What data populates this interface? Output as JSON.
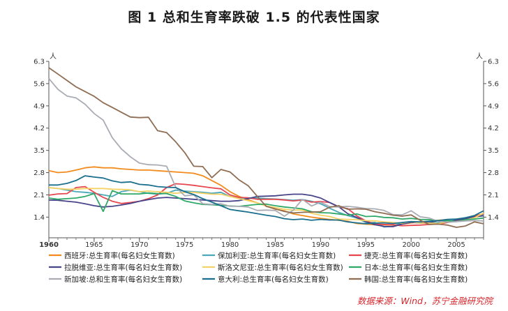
{
  "title": "图 1    总和生育率跌破 1.5 的代表性国家",
  "source": "数据来源：Wind，苏宁金融研究院",
  "chart_data": {
    "type": "line",
    "ylabel_left": "人",
    "ylabel_right": "人",
    "xlim": [
      1960,
      2008
    ],
    "ylim": [
      0.75,
      6.3
    ],
    "yticks": [
      1.4,
      2.1,
      2.8,
      3.5,
      4.2,
      4.9,
      5.6,
      6.3
    ],
    "xticks": [
      1960,
      1965,
      1970,
      1975,
      1980,
      1985,
      1990,
      1995,
      2000,
      2005
    ],
    "x": [
      1960,
      1961,
      1962,
      1963,
      1964,
      1965,
      1966,
      1967,
      1968,
      1969,
      1970,
      1971,
      1972,
      1973,
      1974,
      1975,
      1976,
      1977,
      1978,
      1979,
      1980,
      1981,
      1982,
      1983,
      1984,
      1985,
      1986,
      1987,
      1988,
      1989,
      1990,
      1991,
      1992,
      1993,
      1994,
      1995,
      1996,
      1997,
      1998,
      1999,
      2000,
      2001,
      2002,
      2003,
      2004,
      2005,
      2006,
      2007,
      2008
    ],
    "series": [
      {
        "name": "西班牙:总生育率(每名妇女生育数)",
        "color": "#f28b1c",
        "values": [
          2.86,
          2.8,
          2.82,
          2.88,
          2.95,
          2.98,
          2.95,
          2.95,
          2.92,
          2.9,
          2.88,
          2.88,
          2.86,
          2.84,
          2.82,
          2.8,
          2.78,
          2.7,
          2.55,
          2.4,
          2.2,
          2.05,
          1.95,
          1.85,
          1.75,
          1.65,
          1.6,
          1.5,
          1.45,
          1.4,
          1.36,
          1.33,
          1.3,
          1.27,
          1.2,
          1.18,
          1.16,
          1.16,
          1.15,
          1.18,
          1.22,
          1.24,
          1.26,
          1.3,
          1.32,
          1.34,
          1.37,
          1.39,
          1.46
        ]
      },
      {
        "name": "保加利亚:总生育率(每名妇女生育数)",
        "color": "#4aa8b8",
        "values": [
          2.33,
          2.3,
          2.25,
          2.2,
          2.18,
          2.15,
          2.1,
          2.05,
          2.2,
          2.25,
          2.2,
          2.15,
          2.12,
          2.15,
          2.25,
          2.22,
          2.2,
          2.18,
          2.15,
          2.18,
          2.05,
          2.0,
          2.0,
          2.0,
          1.98,
          1.97,
          1.95,
          1.93,
          1.95,
          1.9,
          1.82,
          1.68,
          1.55,
          1.45,
          1.37,
          1.23,
          1.23,
          1.09,
          1.11,
          1.23,
          1.26,
          1.21,
          1.21,
          1.23,
          1.29,
          1.31,
          1.38,
          1.42,
          1.48
        ]
      },
      {
        "name": "捷克:总生育率(每名妇女生育数)",
        "color": "#e6474f",
        "values": [
          2.09,
          2.13,
          2.14,
          2.33,
          2.36,
          2.18,
          2.02,
          1.9,
          1.83,
          1.86,
          1.9,
          1.98,
          2.1,
          2.33,
          2.45,
          2.43,
          2.4,
          2.36,
          2.32,
          2.29,
          2.1,
          2.02,
          2.01,
          1.96,
          1.96,
          1.96,
          1.94,
          1.91,
          1.94,
          1.87,
          1.89,
          1.86,
          1.72,
          1.67,
          1.44,
          1.28,
          1.18,
          1.17,
          1.16,
          1.13,
          1.14,
          1.15,
          1.17,
          1.18,
          1.23,
          1.28,
          1.33,
          1.44,
          1.5
        ]
      },
      {
        "name": "拉脱维亚:总生育率(每名妇女生育数)",
        "color": "#474489",
        "values": [
          1.94,
          1.93,
          1.9,
          1.87,
          1.82,
          1.76,
          1.72,
          1.74,
          1.78,
          1.83,
          1.9,
          1.95,
          2.0,
          2.02,
          2.0,
          1.98,
          1.96,
          1.94,
          1.92,
          1.9,
          1.9,
          1.92,
          1.98,
          2.05,
          2.06,
          2.07,
          2.1,
          2.12,
          2.12,
          2.08,
          2.0,
          1.86,
          1.73,
          1.51,
          1.39,
          1.26,
          1.16,
          1.11,
          1.1,
          1.18,
          1.24,
          1.21,
          1.23,
          1.29,
          1.24,
          1.31,
          1.35,
          1.41,
          1.44
        ]
      },
      {
        "name": "斯洛文尼亚:总生育率(每名妇女生育数)",
        "color": "#f5d265",
        "values": [
          2.33,
          2.3,
          2.28,
          2.28,
          2.3,
          2.3,
          2.3,
          2.28,
          2.27,
          2.26,
          2.2,
          2.22,
          2.2,
          2.18,
          2.15,
          2.18,
          2.18,
          2.15,
          2.12,
          2.12,
          2.05,
          1.98,
          1.92,
          1.85,
          1.75,
          1.7,
          1.65,
          1.62,
          1.62,
          1.52,
          1.46,
          1.42,
          1.34,
          1.33,
          1.32,
          1.29,
          1.28,
          1.25,
          1.23,
          1.21,
          1.26,
          1.21,
          1.21,
          1.2,
          1.25,
          1.26,
          1.31,
          1.38,
          1.53
        ]
      },
      {
        "name": "日本:总生育率(每名妇女生育数)",
        "color": "#2ea866",
        "values": [
          2.0,
          1.96,
          1.98,
          2.0,
          2.05,
          2.14,
          1.58,
          2.23,
          2.13,
          2.13,
          2.13,
          2.16,
          2.14,
          2.14,
          2.05,
          1.91,
          1.85,
          1.8,
          1.79,
          1.77,
          1.75,
          1.74,
          1.77,
          1.8,
          1.81,
          1.76,
          1.72,
          1.69,
          1.66,
          1.57,
          1.54,
          1.53,
          1.5,
          1.46,
          1.5,
          1.42,
          1.43,
          1.39,
          1.38,
          1.34,
          1.36,
          1.33,
          1.32,
          1.29,
          1.29,
          1.26,
          1.32,
          1.34,
          1.37
        ]
      },
      {
        "name": "新加坡:总和生育率(每名妇女生育数)",
        "color": "#a9acb4",
        "values": [
          5.76,
          5.42,
          5.21,
          5.15,
          4.95,
          4.66,
          4.45,
          3.9,
          3.55,
          3.3,
          3.1,
          3.05,
          3.04,
          3.0,
          2.35,
          2.07,
          2.1,
          1.82,
          1.8,
          1.82,
          1.74,
          1.74,
          1.72,
          1.61,
          1.62,
          1.61,
          1.43,
          1.62,
          1.96,
          1.75,
          1.87,
          1.73,
          1.72,
          1.74,
          1.71,
          1.67,
          1.66,
          1.61,
          1.48,
          1.47,
          1.6,
          1.41,
          1.37,
          1.27,
          1.24,
          1.26,
          1.28,
          1.29,
          1.28
        ]
      },
      {
        "name": "意大利:总生育率(每名妇女生育数)",
        "color": "#1b6f8e",
        "values": [
          2.41,
          2.41,
          2.46,
          2.55,
          2.7,
          2.66,
          2.63,
          2.54,
          2.49,
          2.51,
          2.43,
          2.41,
          2.36,
          2.34,
          2.33,
          2.2,
          2.11,
          1.98,
          1.87,
          1.76,
          1.64,
          1.6,
          1.56,
          1.51,
          1.46,
          1.42,
          1.35,
          1.32,
          1.34,
          1.3,
          1.33,
          1.31,
          1.31,
          1.25,
          1.22,
          1.19,
          1.21,
          1.22,
          1.2,
          1.23,
          1.26,
          1.25,
          1.27,
          1.29,
          1.33,
          1.34,
          1.38,
          1.45,
          1.6
        ]
      },
      {
        "name": "韩国:总生育率(每名妇女生育数)",
        "color": "#8f6d53",
        "values": [
          6.1,
          5.9,
          5.7,
          5.5,
          5.35,
          5.2,
          5.0,
          4.85,
          4.7,
          4.55,
          4.53,
          4.54,
          4.12,
          4.06,
          3.77,
          3.43,
          3.0,
          2.99,
          2.64,
          2.9,
          2.82,
          2.57,
          2.39,
          2.06,
          1.74,
          1.66,
          1.58,
          1.53,
          1.55,
          1.56,
          1.57,
          1.71,
          1.76,
          1.65,
          1.66,
          1.65,
          1.57,
          1.52,
          1.46,
          1.43,
          1.47,
          1.3,
          1.17,
          1.18,
          1.15,
          1.08,
          1.12,
          1.25,
          1.19
        ]
      }
    ]
  }
}
